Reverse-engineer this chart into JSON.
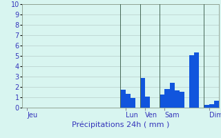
{
  "title": "",
  "xlabel": "Précipitations 24h ( mm )",
  "ylabel": "",
  "bar_color": "#1155dd",
  "background_color": "#d8f5f0",
  "grid_color": "#b8ceca",
  "text_color": "#3333bb",
  "ylim": [
    0,
    10
  ],
  "yticks": [
    0,
    1,
    2,
    3,
    4,
    5,
    6,
    7,
    8,
    9,
    10
  ],
  "bar_values": [
    0,
    0,
    0,
    0,
    0,
    0,
    0,
    0,
    0,
    0,
    0,
    0,
    0,
    0,
    0,
    0,
    0,
    0,
    0,
    0,
    1.75,
    1.35,
    0.95,
    0.0,
    2.9,
    1.05,
    0.0,
    0.0,
    1.25,
    1.8,
    2.4,
    1.65,
    1.55,
    0.0,
    5.1,
    5.35,
    0.0,
    0.25,
    0.35,
    0.7
  ],
  "num_bars": 40,
  "day_labels": [
    "Jeu",
    "Lun",
    "Ven",
    "Sam",
    "Dim"
  ],
  "day_tick_positions": [
    0.5,
    20.5,
    24.5,
    28.5,
    37.5
  ],
  "vline_positions": [
    20,
    24,
    28,
    37
  ],
  "xlabel_fontsize": 8,
  "tick_fontsize": 7,
  "ylabel_fontsize": 7
}
